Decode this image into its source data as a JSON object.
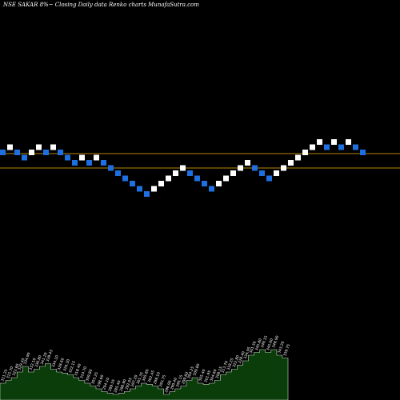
{
  "header": {
    "title": "NSE SAKAR 8%~  Closing Daily data  Renko  charts MunafaSutra.com"
  },
  "colors": {
    "background": "#000000",
    "up_brick": "#ffffff",
    "down_brick": "#1e6fe0",
    "reference_line": "#b8860b",
    "volume_area": "#0a3d0a",
    "volume_edge": "#cfd8cf"
  },
  "chart_data": {
    "type": "renko",
    "title": "NSE SAKAR 8%~  Closing Daily data  Renko  charts MunafaSutra.com",
    "brick_size_pct": 8,
    "bricks_by_level": [
      2,
      3,
      2,
      1,
      2,
      3,
      2,
      3,
      2,
      1,
      0,
      1,
      0,
      1,
      0,
      -1,
      -2,
      -3,
      -4,
      -5,
      -6,
      -5,
      -4,
      -3,
      -2,
      -1,
      -2,
      -3,
      -4,
      -5,
      -4,
      -3,
      -2,
      -1,
      0,
      -1,
      -2,
      -3,
      -2,
      -1,
      0,
      1,
      2,
      3,
      4,
      3,
      4,
      3,
      4,
      3,
      2
    ],
    "brick_directions": [
      "down",
      "up",
      "down",
      "down",
      "up",
      "up",
      "down",
      "up",
      "down",
      "down",
      "down",
      "up",
      "down",
      "up",
      "down",
      "down",
      "down",
      "down",
      "down",
      "down",
      "down",
      "up",
      "up",
      "up",
      "up",
      "up",
      "down",
      "down",
      "down",
      "down",
      "up",
      "up",
      "up",
      "up",
      "up",
      "down",
      "down",
      "down",
      "up",
      "up",
      "up",
      "up",
      "up",
      "up",
      "up",
      "down",
      "up",
      "down",
      "up",
      "down",
      "down"
    ],
    "reference_lines": [
      "upper",
      "lower"
    ],
    "volume": [
      0.3,
      0.35,
      0.4,
      0.5,
      0.6,
      0.5,
      0.55,
      0.6,
      0.65,
      0.55,
      0.5,
      0.48,
      0.45,
      0.4,
      0.35,
      0.3,
      0.25,
      0.2,
      0.15,
      0.12,
      0.1,
      0.12,
      0.15,
      0.2,
      0.25,
      0.3,
      0.28,
      0.25,
      0.2,
      0.1,
      0.15,
      0.2,
      0.25,
      0.35,
      0.4,
      0.3,
      0.28,
      0.3,
      0.35,
      0.45,
      0.5,
      0.55,
      0.62,
      0.7,
      0.8,
      0.85,
      0.9,
      0.85,
      0.9,
      0.8,
      0.75
    ],
    "volume_labels": [
      "311.25",
      "315.70",
      "322.60",
      "329.45",
      "334.90",
      "332.10",
      "336.80",
      "341.20",
      "339.45",
      "334.10",
      "328.60",
      "326.30",
      "322.15",
      "318.40",
      "314.70",
      "309.80",
      "303.25",
      "298.60",
      "294.10",
      "289.55",
      "285.40",
      "288.90",
      "292.65",
      "297.20",
      "301.35",
      "305.80",
      "302.45",
      "298.10",
      "293.75",
      "286.90",
      "290.40",
      "295.15",
      "299.60",
      "304.25",
      "309.80",
      "305.40",
      "301.95",
      "304.60",
      "308.15",
      "313.70",
      "318.25",
      "322.80",
      "328.40",
      "334.95",
      "341.30",
      "345.80",
      "349.15",
      "345.60",
      "348.90",
      "343.20",
      "339.75"
    ]
  }
}
